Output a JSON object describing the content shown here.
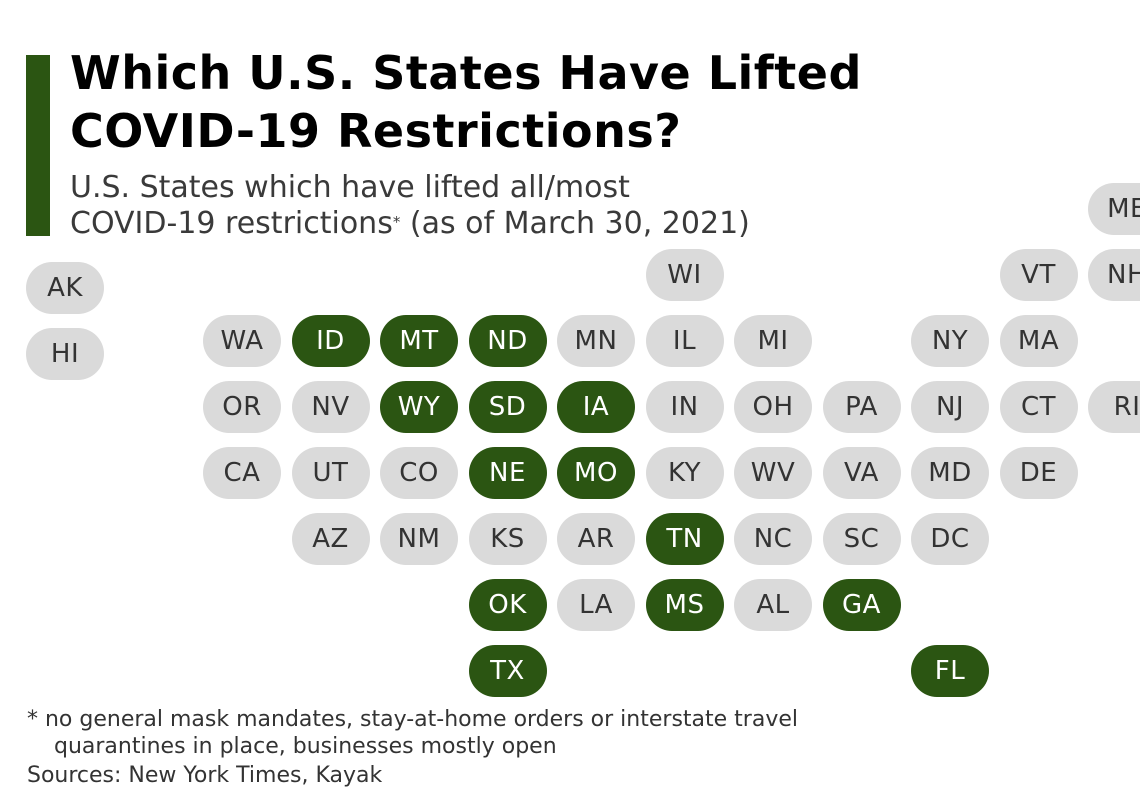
{
  "header": {
    "title_line1": "Which U.S. States Have Lifted",
    "title_line2": "COVID-19 Restrictions?",
    "subtitle_line1": "U.S. States which have lifted all/most",
    "subtitle_line2a": "COVID-19 restrictions",
    "subtitle_mark": "*",
    "subtitle_line2b": " (as of March 30, 2021)"
  },
  "colors": {
    "accent": "#2b5512",
    "lifted": "#2b5512",
    "not_lifted": "#dadada"
  },
  "map": {
    "states": [
      {
        "abbr": "ME",
        "row": 0,
        "col": 12,
        "lifted": false
      },
      {
        "abbr": "WI",
        "row": 1,
        "col": 7,
        "lifted": false
      },
      {
        "abbr": "VT",
        "row": 1,
        "col": 11,
        "lifted": false
      },
      {
        "abbr": "NH",
        "row": 1,
        "col": 12,
        "lifted": false
      },
      {
        "abbr": "AK",
        "row": 1.2,
        "col": 0,
        "lifted": false
      },
      {
        "abbr": "HI",
        "row": 2.2,
        "col": 0,
        "lifted": false
      },
      {
        "abbr": "WA",
        "row": 2,
        "col": 2,
        "lifted": false
      },
      {
        "abbr": "ID",
        "row": 2,
        "col": 3,
        "lifted": true
      },
      {
        "abbr": "MT",
        "row": 2,
        "col": 4,
        "lifted": true
      },
      {
        "abbr": "ND",
        "row": 2,
        "col": 5,
        "lifted": true
      },
      {
        "abbr": "MN",
        "row": 2,
        "col": 6,
        "lifted": false
      },
      {
        "abbr": "IL",
        "row": 2,
        "col": 7,
        "lifted": false
      },
      {
        "abbr": "MI",
        "row": 2,
        "col": 8,
        "lifted": false
      },
      {
        "abbr": "NY",
        "row": 2,
        "col": 10,
        "lifted": false
      },
      {
        "abbr": "MA",
        "row": 2,
        "col": 11,
        "lifted": false
      },
      {
        "abbr": "OR",
        "row": 3,
        "col": 2,
        "lifted": false
      },
      {
        "abbr": "NV",
        "row": 3,
        "col": 3,
        "lifted": false
      },
      {
        "abbr": "WY",
        "row": 3,
        "col": 4,
        "lifted": true
      },
      {
        "abbr": "SD",
        "row": 3,
        "col": 5,
        "lifted": true
      },
      {
        "abbr": "IA",
        "row": 3,
        "col": 6,
        "lifted": true
      },
      {
        "abbr": "IN",
        "row": 3,
        "col": 7,
        "lifted": false
      },
      {
        "abbr": "OH",
        "row": 3,
        "col": 8,
        "lifted": false
      },
      {
        "abbr": "PA",
        "row": 3,
        "col": 9,
        "lifted": false
      },
      {
        "abbr": "NJ",
        "row": 3,
        "col": 10,
        "lifted": false
      },
      {
        "abbr": "CT",
        "row": 3,
        "col": 11,
        "lifted": false
      },
      {
        "abbr": "RI",
        "row": 3,
        "col": 12,
        "lifted": false
      },
      {
        "abbr": "CA",
        "row": 4,
        "col": 2,
        "lifted": false
      },
      {
        "abbr": "UT",
        "row": 4,
        "col": 3,
        "lifted": false
      },
      {
        "abbr": "CO",
        "row": 4,
        "col": 4,
        "lifted": false
      },
      {
        "abbr": "NE",
        "row": 4,
        "col": 5,
        "lifted": true
      },
      {
        "abbr": "MO",
        "row": 4,
        "col": 6,
        "lifted": true
      },
      {
        "abbr": "KY",
        "row": 4,
        "col": 7,
        "lifted": false
      },
      {
        "abbr": "WV",
        "row": 4,
        "col": 8,
        "lifted": false
      },
      {
        "abbr": "VA",
        "row": 4,
        "col": 9,
        "lifted": false
      },
      {
        "abbr": "MD",
        "row": 4,
        "col": 10,
        "lifted": false
      },
      {
        "abbr": "DE",
        "row": 4,
        "col": 11,
        "lifted": false
      },
      {
        "abbr": "AZ",
        "row": 5,
        "col": 3,
        "lifted": false
      },
      {
        "abbr": "NM",
        "row": 5,
        "col": 4,
        "lifted": false
      },
      {
        "abbr": "KS",
        "row": 5,
        "col": 5,
        "lifted": false
      },
      {
        "abbr": "AR",
        "row": 5,
        "col": 6,
        "lifted": false
      },
      {
        "abbr": "TN",
        "row": 5,
        "col": 7,
        "lifted": true
      },
      {
        "abbr": "NC",
        "row": 5,
        "col": 8,
        "lifted": false
      },
      {
        "abbr": "SC",
        "row": 5,
        "col": 9,
        "lifted": false
      },
      {
        "abbr": "DC",
        "row": 5,
        "col": 10,
        "lifted": false
      },
      {
        "abbr": "OK",
        "row": 6,
        "col": 5,
        "lifted": true
      },
      {
        "abbr": "LA",
        "row": 6,
        "col": 6,
        "lifted": false
      },
      {
        "abbr": "MS",
        "row": 6,
        "col": 7,
        "lifted": true
      },
      {
        "abbr": "AL",
        "row": 6,
        "col": 8,
        "lifted": false
      },
      {
        "abbr": "GA",
        "row": 6,
        "col": 9,
        "lifted": true
      },
      {
        "abbr": "TX",
        "row": 7,
        "col": 5,
        "lifted": true
      },
      {
        "abbr": "FL",
        "row": 7,
        "col": 10,
        "lifted": true
      }
    ]
  },
  "footer": {
    "footnote_line1": "* no general mask mandates, stay-at-home orders or interstate travel",
    "footnote_line2": "quarantines in place, businesses mostly open",
    "sources": "Sources: New York Times, Kayak"
  }
}
